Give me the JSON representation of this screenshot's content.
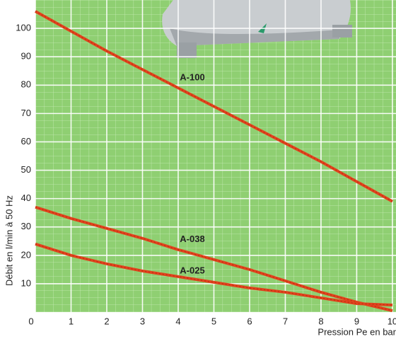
{
  "chart_data": {
    "type": "line",
    "x": [
      0,
      1,
      2,
      3,
      4,
      5,
      6,
      7,
      8,
      9,
      10
    ],
    "series": [
      {
        "name": "A-100",
        "color": "#e2431d",
        "values": [
          106,
          99,
          92,
          85.5,
          79,
          72.5,
          66,
          59.5,
          53,
          46,
          39
        ]
      },
      {
        "name": "A-038",
        "color": "#e2431d",
        "values": [
          37,
          33,
          29.5,
          26,
          22,
          18.5,
          15,
          11,
          7,
          3.5,
          0.5
        ]
      },
      {
        "name": "A-025",
        "color": "#e2431d",
        "values": [
          24,
          20,
          17,
          14.5,
          12.5,
          10.5,
          8.5,
          7,
          5,
          3,
          2.5
        ]
      }
    ],
    "xlim": [
      0,
      10.1
    ],
    "xticks": [
      0,
      1,
      2,
      3,
      4,
      5,
      6,
      7,
      8,
      9,
      10
    ],
    "ylim": [
      0,
      110
    ],
    "yticks": [
      10,
      20,
      30,
      40,
      50,
      60,
      70,
      80,
      90,
      100
    ],
    "xlabel": "Pression Pe en bar",
    "ylabel": "Débit en l/min à 50 Hz",
    "grid": true
  }
}
